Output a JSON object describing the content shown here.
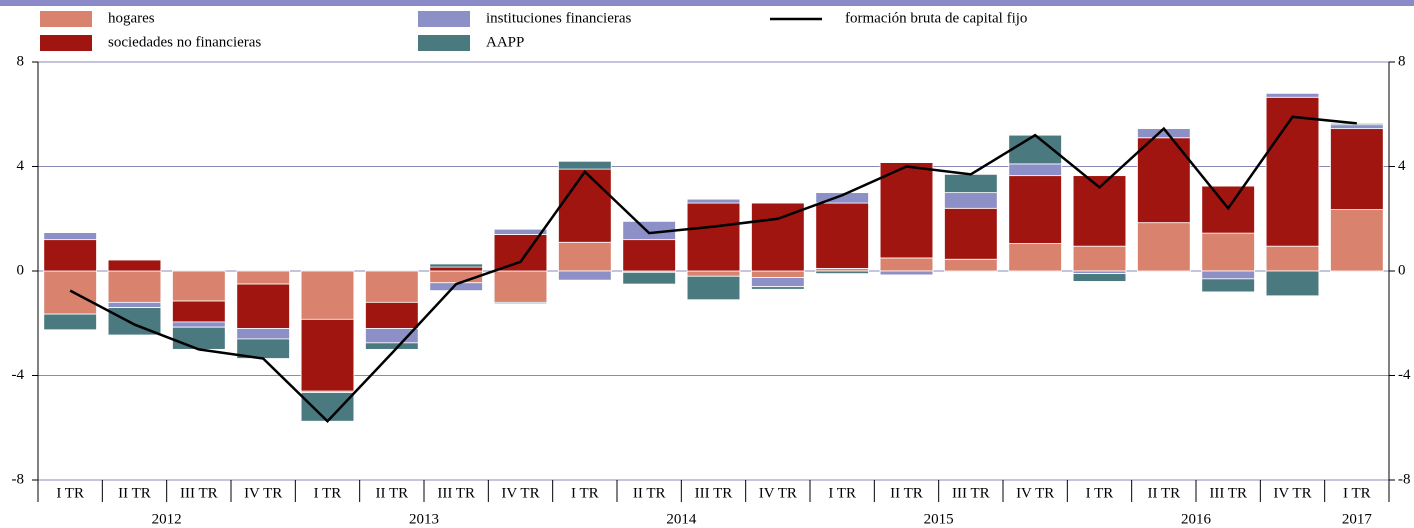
{
  "chart_data": {
    "type": "bar",
    "categories": [
      "I TR",
      "II TR",
      "III TR",
      "IV TR",
      "I TR",
      "II TR",
      "III TR",
      "IV TR",
      "I TR",
      "II TR",
      "III TR",
      "IV TR",
      "I TR",
      "II TR",
      "III TR",
      "IV TR",
      "I TR",
      "II TR",
      "III TR",
      "IV TR",
      "I TR"
    ],
    "years": [
      "2012",
      "2012",
      "2012",
      "2012",
      "2013",
      "2013",
      "2013",
      "2013",
      "2014",
      "2014",
      "2014",
      "2014",
      "2015",
      "2015",
      "2015",
      "2015",
      "2016",
      "2016",
      "2016",
      "2016",
      "2017"
    ],
    "series": [
      {
        "name": "hogares",
        "color": "#d9826e",
        "values": [
          -1.65,
          -1.2,
          -1.15,
          -0.5,
          -1.85,
          -1.2,
          -0.45,
          -1.2,
          1.1,
          -0.05,
          -0.2,
          -0.25,
          0.1,
          0.5,
          0.45,
          1.05,
          0.95,
          1.85,
          1.45,
          0.95,
          2.35
        ]
      },
      {
        "name": "sociedades no financieras",
        "color": "#a0150f",
        "values": [
          1.2,
          0.42,
          -0.8,
          -1.7,
          -2.75,
          -1.0,
          0.15,
          1.4,
          2.8,
          1.2,
          2.6,
          2.6,
          2.5,
          3.65,
          1.95,
          2.6,
          2.7,
          3.25,
          1.8,
          5.7,
          3.1
        ]
      },
      {
        "name": "instituciones financieras",
        "color": "#8d8fc7",
        "values": [
          0.27,
          -0.2,
          -0.2,
          -0.4,
          -0.05,
          -0.55,
          -0.3,
          0.2,
          -0.35,
          0.7,
          0.15,
          -0.35,
          0.4,
          -0.15,
          0.6,
          0.45,
          -0.1,
          0.35,
          -0.3,
          0.15,
          0.15
        ]
      },
      {
        "name": "AAPP",
        "color": "#4a7a80",
        "values": [
          -0.6,
          -1.05,
          -0.85,
          -0.75,
          -1.1,
          -0.25,
          0.12,
          -0.05,
          0.3,
          -0.45,
          -0.9,
          -0.1,
          -0.1,
          0.0,
          0.7,
          1.1,
          -0.3,
          0.0,
          -0.5,
          -0.95,
          0.05
        ]
      },
      {
        "name": "formación bruta de capital fijo",
        "type": "line",
        "color": "#000000",
        "values": [
          -0.75,
          -2.05,
          -3.0,
          -3.35,
          -5.75,
          -3.15,
          -0.5,
          0.35,
          3.8,
          1.45,
          1.7,
          2.0,
          2.9,
          4.0,
          3.7,
          5.2,
          3.2,
          5.45,
          2.4,
          5.9,
          5.65
        ]
      }
    ],
    "ylim": [
      -8,
      8
    ],
    "yticks": [
      -8,
      -4,
      0,
      4,
      8
    ],
    "y2lim": [
      -8,
      8
    ],
    "y2ticks": [
      -8,
      -4,
      0,
      4,
      8
    ],
    "grid": true
  }
}
